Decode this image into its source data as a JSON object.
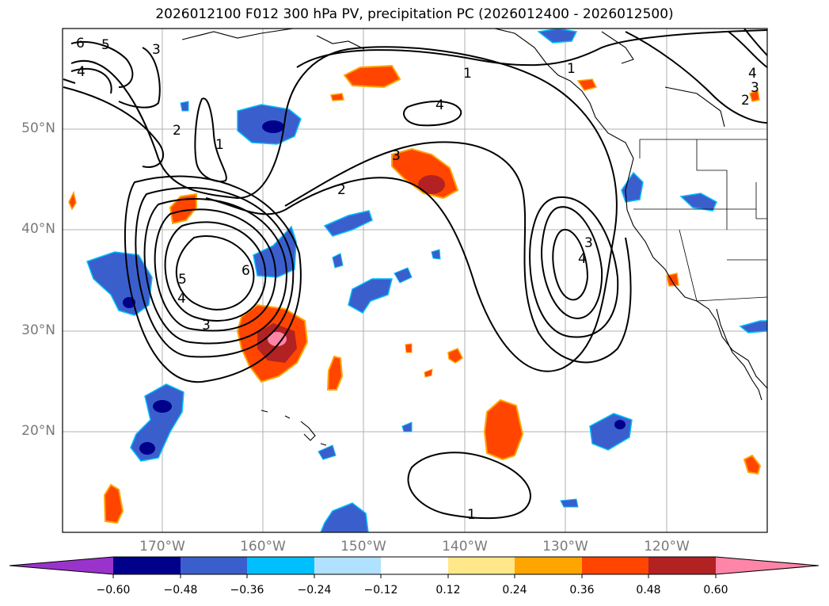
{
  "title": "2026012100 F012 300 hPa PV, precipitation PC (2026012400 - 2026012500)",
  "lat_labels": [
    "50°N",
    "40°N",
    "30°N",
    "20°N"
  ],
  "lon_labels": [
    "170°W",
    "160°W",
    "150°W",
    "140°W",
    "130°W",
    "120°W"
  ],
  "contour_labels": [
    "6",
    "5",
    "4",
    "3",
    "2",
    "1",
    "1",
    "4",
    "3",
    "2",
    "6",
    "5",
    "4",
    "3",
    "3",
    "4",
    "1",
    "4",
    "3",
    "2",
    "1"
  ],
  "colorbar": {
    "ticks": [
      "−0.60",
      "−0.48",
      "−0.36",
      "−0.24",
      "−0.12",
      "0.12",
      "0.24",
      "0.36",
      "0.48",
      "0.60"
    ],
    "colors": [
      "#9933cc",
      "#00008b",
      "#3a5fcd",
      "#00bfff",
      "#b0e2ff",
      "#ffffff",
      "#ffe78a",
      "#ffa500",
      "#ff4500",
      "#b22222",
      "#ff85a8"
    ]
  }
}
